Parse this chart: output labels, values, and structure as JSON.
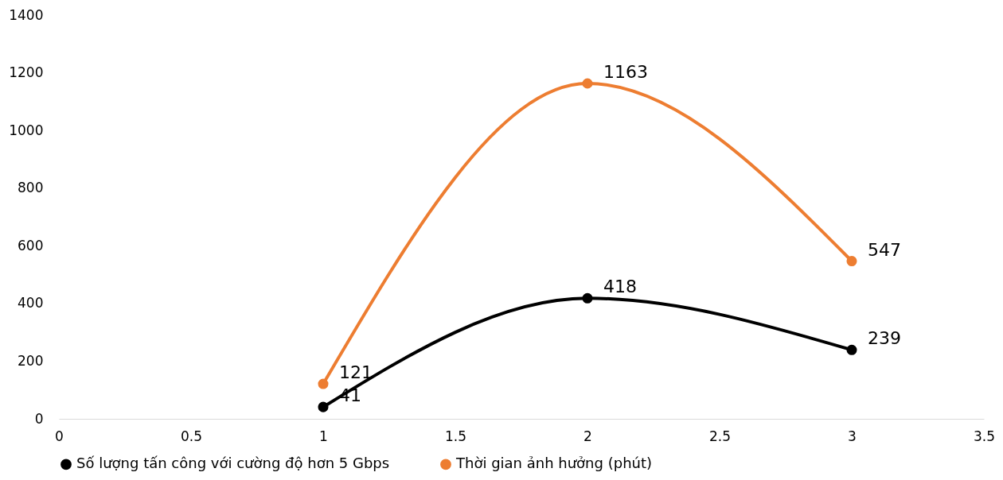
{
  "chart_data": {
    "type": "line",
    "x": [
      1,
      2,
      3
    ],
    "series": [
      {
        "name": "Số lượng tấn công với cường độ hơn 5 Gbps",
        "color": "#000000",
        "values": [
          41,
          418,
          239
        ]
      },
      {
        "name": "Thời gian ảnh hưởng (phút)",
        "color": "#ed7d31",
        "values": [
          121,
          1163,
          547
        ]
      }
    ],
    "xlim": [
      0,
      3.5
    ],
    "xticks": [
      0,
      0.5,
      1,
      1.5,
      2,
      2.5,
      3,
      3.5
    ],
    "ylim": [
      0,
      1400
    ],
    "yticks": [
      0,
      200,
      400,
      600,
      800,
      1000,
      1200,
      1400
    ],
    "data_labels": true,
    "legend": "bottom",
    "marker": "circle",
    "grid": false,
    "line_style": "solid"
  }
}
